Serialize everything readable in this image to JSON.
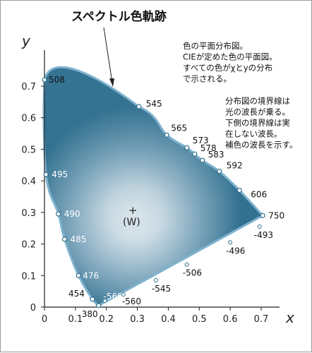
{
  "chart_data": {
    "type": "scatter",
    "title": "スペクトル色軌跡",
    "xlabel": "x",
    "ylabel": "y",
    "xlim": [
      0,
      0.75
    ],
    "ylim": [
      0,
      0.8
    ],
    "x_ticks": [
      "0",
      "0.1",
      "0.2",
      "0.3",
      "0.4",
      "0.5",
      "0.6",
      "0.7"
    ],
    "y_ticks": [
      "0",
      "0.1",
      "0.2",
      "0.3",
      "0.4",
      "0.5",
      "0.6",
      "0.7"
    ],
    "white_point": {
      "label_plus": "+",
      "label": "(W)",
      "x": 0.31,
      "y": 0.32
    },
    "spectral_locus": [
      {
        "label": "380",
        "x": 0.175,
        "y": 0.005
      },
      {
        "label": "454",
        "x": 0.155,
        "y": 0.025
      },
      {
        "label": "476",
        "x": 0.11,
        "y": 0.1
      },
      {
        "label": "485",
        "x": 0.065,
        "y": 0.215
      },
      {
        "label": "490",
        "x": 0.045,
        "y": 0.295
      },
      {
        "label": "495",
        "x": 0.005,
        "y": 0.42
      },
      {
        "label": "508",
        "x": 0.0,
        "y": 0.72
      },
      {
        "label": "545",
        "x": 0.305,
        "y": 0.635
      },
      {
        "label": "565",
        "x": 0.395,
        "y": 0.545
      },
      {
        "label": "573",
        "x": 0.46,
        "y": 0.505
      },
      {
        "label": "578",
        "x": 0.485,
        "y": 0.485
      },
      {
        "label": "583",
        "x": 0.51,
        "y": 0.465
      },
      {
        "label": "592",
        "x": 0.565,
        "y": 0.43
      },
      {
        "label": "606",
        "x": 0.63,
        "y": 0.37
      },
      {
        "label": "750",
        "x": 0.705,
        "y": 0.29
      }
    ],
    "complementary_points": [
      {
        "label": "-566",
        "x": 0.195,
        "y": 0.02
      },
      {
        "label": "-560",
        "x": 0.255,
        "y": 0.04
      },
      {
        "label": "-545",
        "x": 0.36,
        "y": 0.085
      },
      {
        "label": "-506",
        "x": 0.46,
        "y": 0.135
      },
      {
        "label": "-496",
        "x": 0.6,
        "y": 0.205
      },
      {
        "label": "-493",
        "x": 0.695,
        "y": 0.255
      }
    ],
    "notes": [
      "色の平面分布図。",
      "CIEが定めた色の平面図。",
      "すべての色がχとyの分布",
      "で示される。"
    ],
    "notes2": [
      "分布図の境界線は",
      "光の波長が乗る。",
      "下側の境界線は実",
      "在しない波長。",
      "補色の波長を示す。"
    ]
  }
}
